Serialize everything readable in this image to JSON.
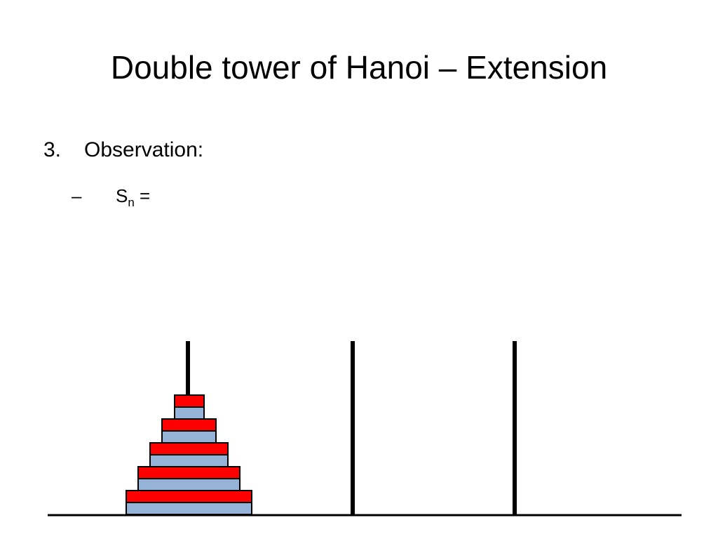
{
  "title": "Double tower of Hanoi – Extension",
  "list": {
    "number": "3.",
    "text": "Observation:",
    "sub_item": {
      "bullet": "–",
      "base": "S",
      "subscript": "n",
      "rest": "="
    }
  }
}
